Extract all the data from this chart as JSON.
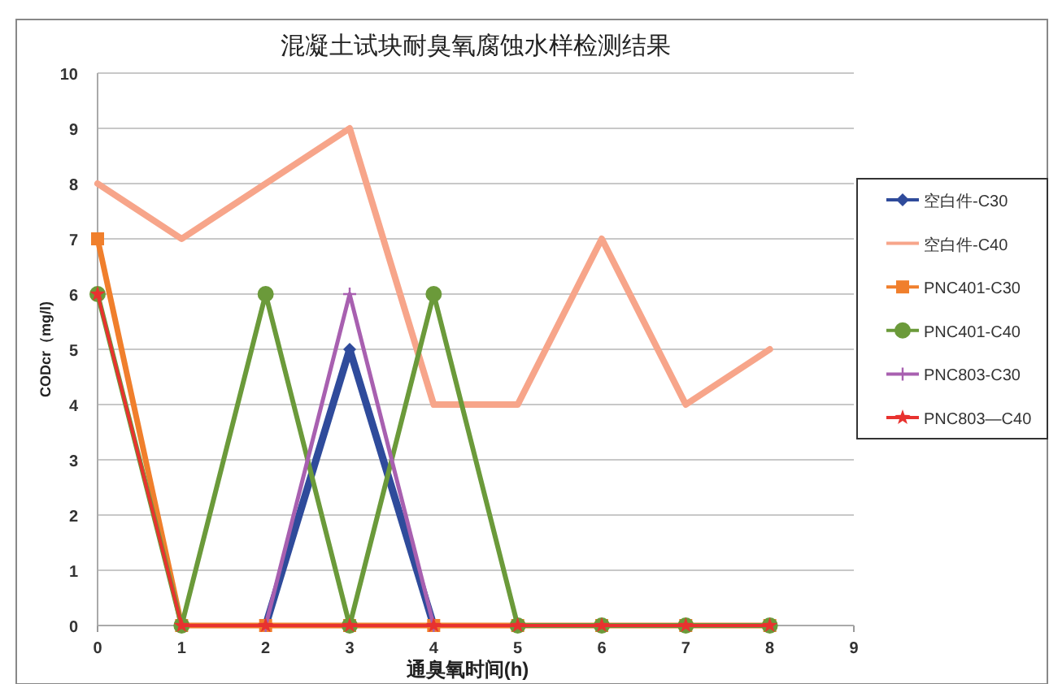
{
  "chart_data": {
    "type": "line",
    "title": "混凝土试块耐臭氧腐蚀水样检测结果",
    "xlabel": "通臭氧时间(h)",
    "ylabel": "CODcr（mg/l)",
    "x": [
      0,
      1,
      2,
      3,
      4,
      5,
      6,
      7,
      8
    ],
    "xlim": [
      0,
      9
    ],
    "xticks": [
      0,
      1,
      2,
      3,
      4,
      5,
      6,
      7,
      8,
      9
    ],
    "ylim": [
      0,
      10
    ],
    "yticks": [
      0,
      1,
      2,
      3,
      4,
      5,
      6,
      7,
      8,
      9,
      10
    ],
    "grid": "y",
    "legend": "right",
    "series": [
      {
        "name": "空白件-C30",
        "color": "#2f4b9b",
        "marker": "diamond",
        "values": [
          null,
          null,
          0,
          5,
          0,
          null,
          null,
          null,
          null
        ]
      },
      {
        "name": "空白件-C40",
        "color": "#f7a58a",
        "marker": "none",
        "values": [
          8,
          7,
          8,
          9,
          4,
          4,
          7,
          4,
          5
        ]
      },
      {
        "name": "PNC401-C30",
        "color": "#f07f2c",
        "marker": "square",
        "values": [
          7,
          0,
          0,
          0,
          0,
          0,
          0,
          0,
          0
        ]
      },
      {
        "name": "PNC401-C40",
        "color": "#6b9a3a",
        "marker": "circle",
        "values": [
          6,
          0,
          6,
          0,
          6,
          0,
          0,
          0,
          0
        ]
      },
      {
        "name": "PNC803-C30",
        "color": "#a860b0",
        "marker": "cross",
        "values": [
          null,
          null,
          0,
          6,
          0,
          null,
          null,
          null,
          null
        ]
      },
      {
        "name": "PNC803—C40",
        "color": "#e8322f",
        "marker": "star",
        "values": [
          6,
          0,
          0,
          0,
          0,
          0,
          0,
          0,
          0
        ]
      }
    ]
  }
}
